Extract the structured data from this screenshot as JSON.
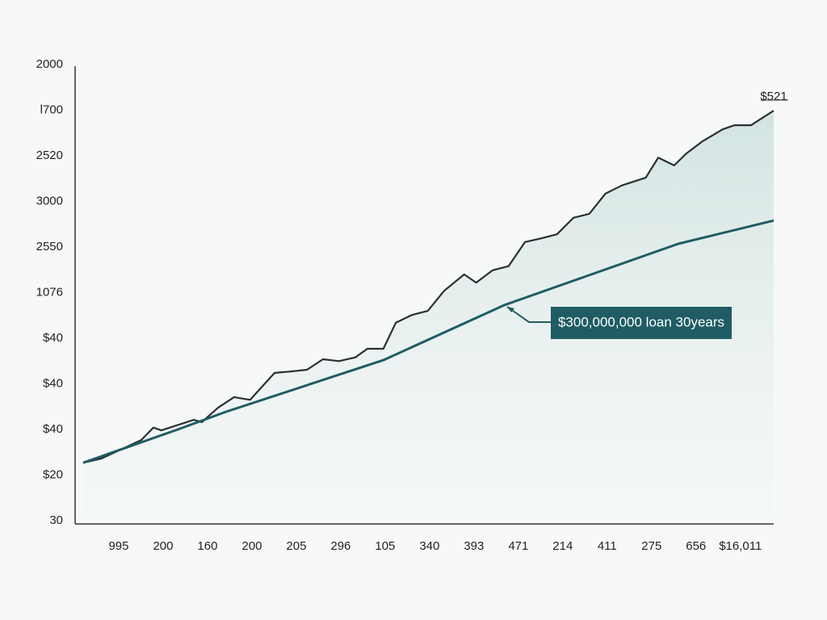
{
  "chart_data": {
    "type": "line",
    "xlim": [
      0,
      15.75
    ],
    "ylim": [
      0,
      10
    ],
    "xticks": [
      {
        "value": 1,
        "label": "995"
      },
      {
        "value": 2,
        "label": "200"
      },
      {
        "value": 3,
        "label": "160"
      },
      {
        "value": 4,
        "label": "200"
      },
      {
        "value": 5,
        "label": "205"
      },
      {
        "value": 6,
        "label": "296"
      },
      {
        "value": 7,
        "label": "105"
      },
      {
        "value": 8,
        "label": "340"
      },
      {
        "value": 9,
        "label": "393"
      },
      {
        "value": 10,
        "label": "471"
      },
      {
        "value": 11,
        "label": "214"
      },
      {
        "value": 12,
        "label": "411"
      },
      {
        "value": 13,
        "label": "275"
      },
      {
        "value": 14,
        "label": "656"
      },
      {
        "value": 15,
        "label": "$16,011"
      }
    ],
    "yticks": [
      {
        "value": 0,
        "label": "30"
      },
      {
        "value": 1,
        "label": "$20"
      },
      {
        "value": 2,
        "label": "$40"
      },
      {
        "value": 3,
        "label": "$40"
      },
      {
        "value": 4,
        "label": "$40"
      },
      {
        "value": 5,
        "label": "1076"
      },
      {
        "value": 6,
        "label": "2550"
      },
      {
        "value": 7,
        "label": "3000"
      },
      {
        "value": 8,
        "label": "2520"
      },
      {
        "value": 9,
        "label": "l700"
      },
      {
        "value": 10,
        "label": "2000"
      }
    ],
    "series": [
      {
        "color": "#2b3033",
        "x": [
          0.2,
          0.6,
          1.05,
          1.51,
          1.78,
          1.96,
          2.69,
          2.87,
          3.24,
          3.6,
          3.96,
          4.51,
          4.87,
          5.24,
          5.6,
          5.96,
          6.33,
          6.6,
          6.96,
          7.24,
          7.6,
          7.96,
          8.33,
          8.78,
          9.05,
          9.42,
          9.78,
          10.15,
          10.51,
          10.87,
          11.24,
          11.6,
          11.96,
          12.33,
          12.87,
          13.15,
          13.51,
          13.78,
          14.15,
          14.6,
          14.87,
          15.24,
          15.75
        ],
        "values": [
          1.27,
          1.36,
          1.56,
          1.77,
          2.04,
          1.98,
          2.21,
          2.16,
          2.48,
          2.71,
          2.65,
          3.24,
          3.27,
          3.31,
          3.54,
          3.5,
          3.58,
          3.77,
          3.77,
          4.34,
          4.51,
          4.6,
          5.04,
          5.4,
          5.22,
          5.49,
          5.58,
          6.11,
          6.19,
          6.28,
          6.64,
          6.73,
          7.17,
          7.35,
          7.52,
          7.96,
          7.79,
          8.05,
          8.32,
          8.58,
          8.67,
          8.67,
          8.99
        ]
      },
      {
        "color": "#1f5c63",
        "x": [
          0.2,
          2.33,
          3.42,
          6.96,
          9.69,
          13.6,
          15.75
        ],
        "values": [
          1.27,
          2.0,
          2.39,
          3.52,
          4.73,
          6.07,
          6.58
        ]
      }
    ],
    "annotations": [
      "$521",
      "$300,000,000 loan 30years"
    ]
  }
}
